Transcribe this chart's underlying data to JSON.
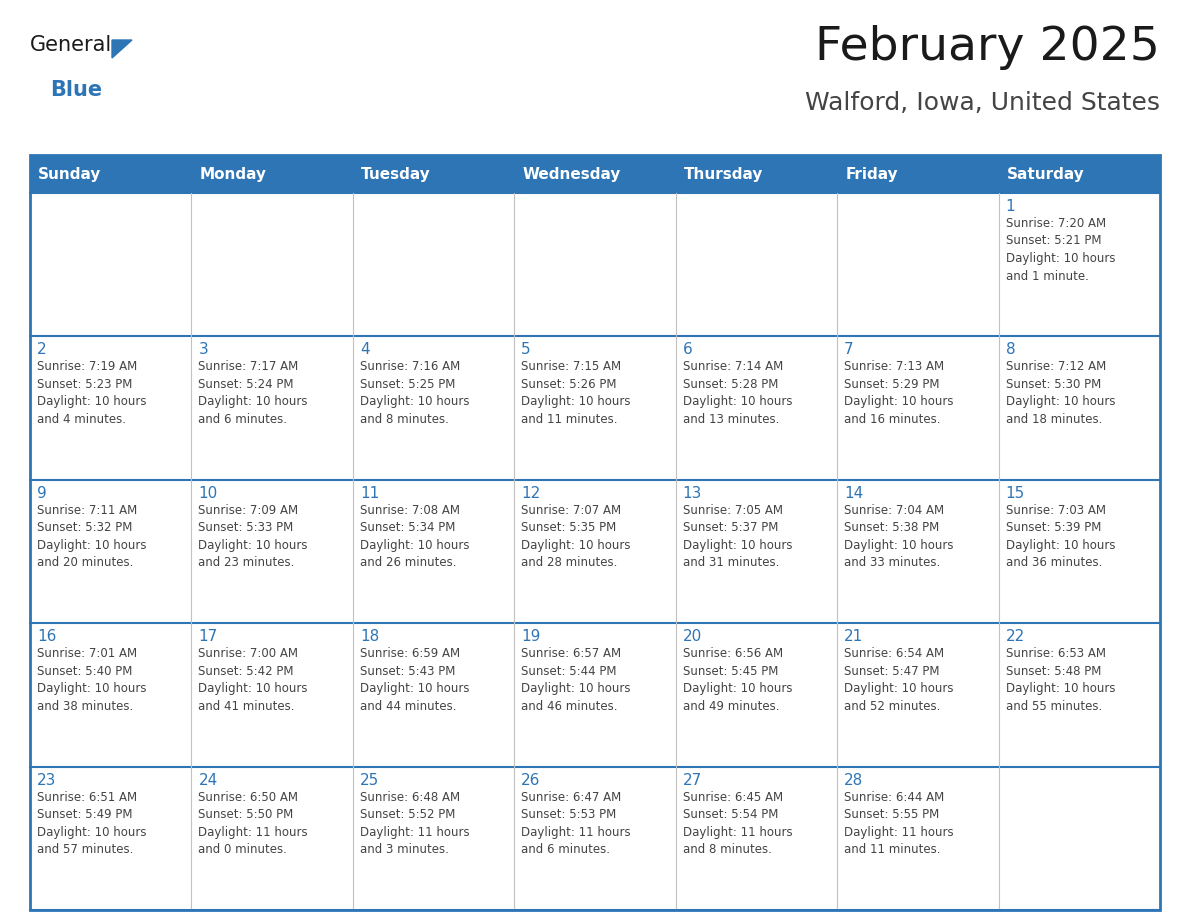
{
  "title": "February 2025",
  "subtitle": "Walford, Iowa, United States",
  "header_bg": "#2e75b6",
  "header_text_color": "#ffffff",
  "cell_bg": "#f5f5f5",
  "day_number_color": "#2e75b6",
  "text_color": "#444444",
  "border_color": "#2e75b6",
  "cell_line_color": "#cccccc",
  "days_of_week": [
    "Sunday",
    "Monday",
    "Tuesday",
    "Wednesday",
    "Thursday",
    "Friday",
    "Saturday"
  ],
  "calendar": [
    [
      {
        "day": null,
        "info": null
      },
      {
        "day": null,
        "info": null
      },
      {
        "day": null,
        "info": null
      },
      {
        "day": null,
        "info": null
      },
      {
        "day": null,
        "info": null
      },
      {
        "day": null,
        "info": null
      },
      {
        "day": 1,
        "info": "Sunrise: 7:20 AM\nSunset: 5:21 PM\nDaylight: 10 hours\nand 1 minute."
      }
    ],
    [
      {
        "day": 2,
        "info": "Sunrise: 7:19 AM\nSunset: 5:23 PM\nDaylight: 10 hours\nand 4 minutes."
      },
      {
        "day": 3,
        "info": "Sunrise: 7:17 AM\nSunset: 5:24 PM\nDaylight: 10 hours\nand 6 minutes."
      },
      {
        "day": 4,
        "info": "Sunrise: 7:16 AM\nSunset: 5:25 PM\nDaylight: 10 hours\nand 8 minutes."
      },
      {
        "day": 5,
        "info": "Sunrise: 7:15 AM\nSunset: 5:26 PM\nDaylight: 10 hours\nand 11 minutes."
      },
      {
        "day": 6,
        "info": "Sunrise: 7:14 AM\nSunset: 5:28 PM\nDaylight: 10 hours\nand 13 minutes."
      },
      {
        "day": 7,
        "info": "Sunrise: 7:13 AM\nSunset: 5:29 PM\nDaylight: 10 hours\nand 16 minutes."
      },
      {
        "day": 8,
        "info": "Sunrise: 7:12 AM\nSunset: 5:30 PM\nDaylight: 10 hours\nand 18 minutes."
      }
    ],
    [
      {
        "day": 9,
        "info": "Sunrise: 7:11 AM\nSunset: 5:32 PM\nDaylight: 10 hours\nand 20 minutes."
      },
      {
        "day": 10,
        "info": "Sunrise: 7:09 AM\nSunset: 5:33 PM\nDaylight: 10 hours\nand 23 minutes."
      },
      {
        "day": 11,
        "info": "Sunrise: 7:08 AM\nSunset: 5:34 PM\nDaylight: 10 hours\nand 26 minutes."
      },
      {
        "day": 12,
        "info": "Sunrise: 7:07 AM\nSunset: 5:35 PM\nDaylight: 10 hours\nand 28 minutes."
      },
      {
        "day": 13,
        "info": "Sunrise: 7:05 AM\nSunset: 5:37 PM\nDaylight: 10 hours\nand 31 minutes."
      },
      {
        "day": 14,
        "info": "Sunrise: 7:04 AM\nSunset: 5:38 PM\nDaylight: 10 hours\nand 33 minutes."
      },
      {
        "day": 15,
        "info": "Sunrise: 7:03 AM\nSunset: 5:39 PM\nDaylight: 10 hours\nand 36 minutes."
      }
    ],
    [
      {
        "day": 16,
        "info": "Sunrise: 7:01 AM\nSunset: 5:40 PM\nDaylight: 10 hours\nand 38 minutes."
      },
      {
        "day": 17,
        "info": "Sunrise: 7:00 AM\nSunset: 5:42 PM\nDaylight: 10 hours\nand 41 minutes."
      },
      {
        "day": 18,
        "info": "Sunrise: 6:59 AM\nSunset: 5:43 PM\nDaylight: 10 hours\nand 44 minutes."
      },
      {
        "day": 19,
        "info": "Sunrise: 6:57 AM\nSunset: 5:44 PM\nDaylight: 10 hours\nand 46 minutes."
      },
      {
        "day": 20,
        "info": "Sunrise: 6:56 AM\nSunset: 5:45 PM\nDaylight: 10 hours\nand 49 minutes."
      },
      {
        "day": 21,
        "info": "Sunrise: 6:54 AM\nSunset: 5:47 PM\nDaylight: 10 hours\nand 52 minutes."
      },
      {
        "day": 22,
        "info": "Sunrise: 6:53 AM\nSunset: 5:48 PM\nDaylight: 10 hours\nand 55 minutes."
      }
    ],
    [
      {
        "day": 23,
        "info": "Sunrise: 6:51 AM\nSunset: 5:49 PM\nDaylight: 10 hours\nand 57 minutes."
      },
      {
        "day": 24,
        "info": "Sunrise: 6:50 AM\nSunset: 5:50 PM\nDaylight: 11 hours\nand 0 minutes."
      },
      {
        "day": 25,
        "info": "Sunrise: 6:48 AM\nSunset: 5:52 PM\nDaylight: 11 hours\nand 3 minutes."
      },
      {
        "day": 26,
        "info": "Sunrise: 6:47 AM\nSunset: 5:53 PM\nDaylight: 11 hours\nand 6 minutes."
      },
      {
        "day": 27,
        "info": "Sunrise: 6:45 AM\nSunset: 5:54 PM\nDaylight: 11 hours\nand 8 minutes."
      },
      {
        "day": 28,
        "info": "Sunrise: 6:44 AM\nSunset: 5:55 PM\nDaylight: 11 hours\nand 11 minutes."
      },
      {
        "day": null,
        "info": null
      }
    ]
  ],
  "logo_general_color": "#1a1a1a",
  "logo_blue_color": "#2e75b6",
  "logo_triangle_color": "#2e75b6",
  "fig_width": 11.88,
  "fig_height": 9.18,
  "dpi": 100
}
